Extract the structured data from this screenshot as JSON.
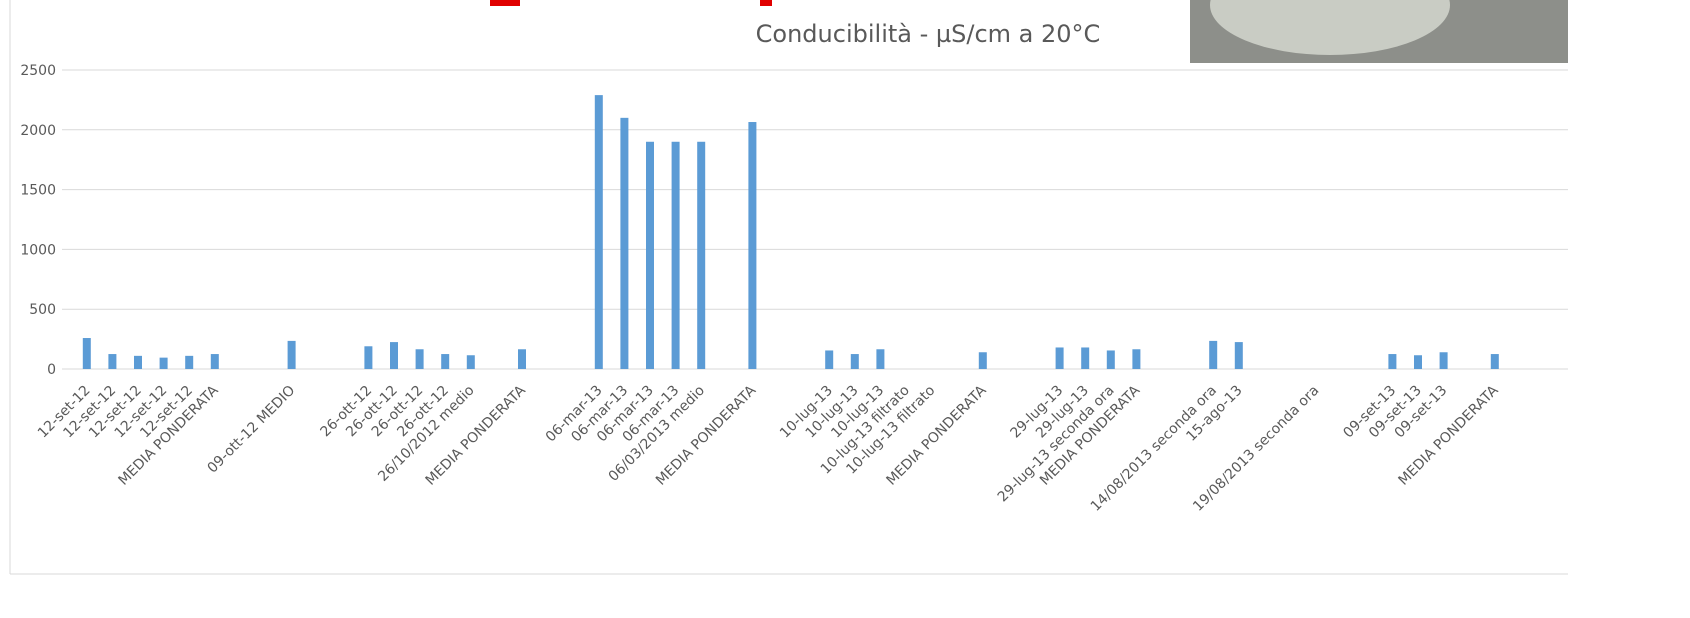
{
  "chart_data": {
    "type": "bar",
    "title": "Conducibilità -  µS/cm a 20°C",
    "categories": [
      "12-set-12",
      "12-set-12",
      "12-set-12",
      "12-set-12",
      "12-set-12",
      "MEDIA PONDERATA",
      null,
      null,
      "09-ott-12 MEDIO",
      null,
      null,
      "26-ott-12",
      "26-ott-12",
      "26-ott-12",
      "26-ott-12",
      "26/10/2012 medio",
      null,
      "MEDIA PONDERATA",
      null,
      null,
      "06-mar-13",
      "06-mar-13",
      "06-mar-13",
      "06-mar-13",
      "06/03/2013 medio",
      null,
      "MEDIA PONDERATA",
      null,
      null,
      "10-lug-13",
      "10-lug-13",
      "10-lug-13",
      "10-lug-13 filtrato",
      "10-lug-13 filtrato",
      null,
      "MEDIA PONDERATA",
      null,
      null,
      "29-lug-13",
      "29-lug-13",
      "29-lug-13 seconda ora",
      "MEDIA PONDERATA",
      null,
      null,
      "14/08/2013 seconda ora",
      "15-ago-13",
      null,
      null,
      "19/08/2013 seconda ora",
      null,
      null,
      "09-set-13",
      "09-set-13",
      "09-set-13",
      null,
      "MEDIA PONDERATA",
      null,
      null
    ],
    "values": [
      259,
      125,
      110,
      95,
      110,
      125,
      null,
      null,
      235,
      null,
      null,
      190,
      225,
      165,
      125,
      115,
      null,
      165,
      null,
      null,
      2290,
      2100,
      1900,
      1900,
      1900,
      null,
      2065,
      null,
      null,
      155,
      125,
      165,
      null,
      null,
      null,
      140,
      null,
      null,
      180,
      180,
      155,
      165,
      null,
      null,
      235,
      225,
      null,
      null,
      null,
      null,
      null,
      125,
      115,
      140,
      null,
      125,
      null,
      null
    ],
    "color": "#5b9bd5",
    "ylim": [
      0,
      2500
    ],
    "yticks": [
      0,
      500,
      1000,
      1500,
      2000,
      2500
    ],
    "grid": true
  }
}
